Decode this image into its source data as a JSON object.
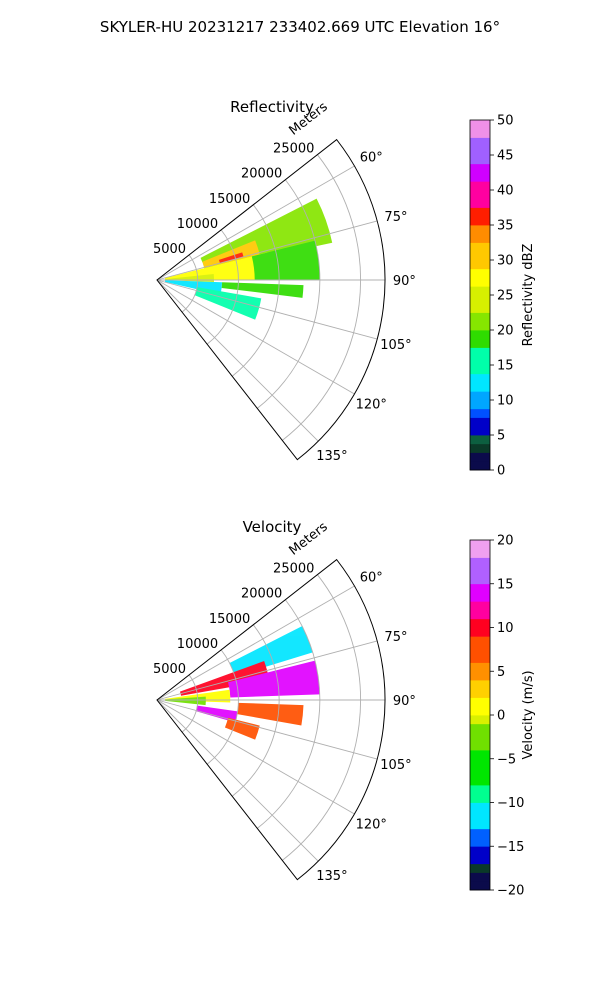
{
  "figure": {
    "suptitle": "SKYLER-HU  20231217  233402.669 UTC Elevation 16°"
  },
  "chart_data": [
    {
      "type": "heatmap",
      "projection": "polar-sector",
      "title": "Reflectivity",
      "radial_axis_label": "Meters",
      "radial_ticks": [
        5000,
        10000,
        15000,
        20000,
        25000
      ],
      "radial_tick_labels": [
        "5000",
        "10000",
        "15000",
        "20000",
        "25000"
      ],
      "r_max": 28000,
      "azimuth_range_deg": [
        52,
        142
      ],
      "angular_ticks_deg": [
        60,
        75,
        90,
        105,
        120,
        135
      ],
      "angular_tick_labels": [
        "60°",
        "75°",
        "90°",
        "105°",
        "120°",
        "135°"
      ],
      "grid": true,
      "colorbar": {
        "label": "Reflectivity dBZ",
        "range": [
          0,
          50
        ],
        "ticks": [
          0,
          5,
          10,
          15,
          20,
          25,
          30,
          35,
          40,
          45,
          50
        ],
        "tick_labels": [
          "0",
          "5",
          "10",
          "15",
          "20",
          "25",
          "30",
          "35",
          "40",
          "45",
          "50"
        ]
      },
      "echo_regions": [
        {
          "az": [
            63,
            78
          ],
          "r": [
            6000,
            22000
          ],
          "value": 22
        },
        {
          "az": [
            68,
            76
          ],
          "r": [
            6000,
            13000
          ],
          "value": 30
        },
        {
          "az": [
            72,
            75
          ],
          "r": [
            8000,
            11000
          ],
          "value": 36
        },
        {
          "az": [
            76,
            90
          ],
          "r": [
            1000,
            14000
          ],
          "value": 26
        },
        {
          "az": [
            76,
            90
          ],
          "r": [
            12000,
            20000
          ],
          "value": 17
        },
        {
          "az": [
            84,
            92
          ],
          "r": [
            1000,
            7000
          ],
          "value": 24
        },
        {
          "az": [
            92,
            103
          ],
          "r": [
            1000,
            8000
          ],
          "value": 12
        },
        {
          "az": [
            92,
            97
          ],
          "r": [
            8000,
            18000
          ],
          "value": 17
        },
        {
          "az": [
            100,
            112
          ],
          "r": [
            5000,
            13000
          ],
          "value": 14
        }
      ]
    },
    {
      "type": "heatmap",
      "projection": "polar-sector",
      "title": "Velocity",
      "radial_axis_label": "Meters",
      "radial_ticks": [
        5000,
        10000,
        15000,
        20000,
        25000
      ],
      "radial_tick_labels": [
        "5000",
        "10000",
        "15000",
        "20000",
        "25000"
      ],
      "r_max": 28000,
      "azimuth_range_deg": [
        52,
        142
      ],
      "angular_ticks_deg": [
        60,
        75,
        90,
        105,
        120,
        135
      ],
      "angular_tick_labels": [
        "60°",
        "75°",
        "90°",
        "105°",
        "120°",
        "135°"
      ],
      "grid": true,
      "colorbar": {
        "label": "Velocity (m/s)",
        "range": [
          -20,
          20
        ],
        "ticks": [
          -20,
          -15,
          -10,
          -5,
          0,
          5,
          10,
          15,
          20
        ],
        "tick_labels": [
          "−20",
          "−15",
          "−10",
          "−5",
          "0",
          "5",
          "10",
          "15",
          "20"
        ]
      },
      "echo_regions": [
        {
          "az": [
            63,
            73
          ],
          "r": [
            10000,
            20000
          ],
          "value": -11
        },
        {
          "az": [
            70,
            80
          ],
          "r": [
            3000,
            14000
          ],
          "value": 10
        },
        {
          "az": [
            76,
            88
          ],
          "r": [
            9000,
            20000
          ],
          "value": 15
        },
        {
          "az": [
            82,
            92
          ],
          "r": [
            1000,
            9000
          ],
          "value": 1
        },
        {
          "az": [
            86,
            96
          ],
          "r": [
            1000,
            6000
          ],
          "value": -3
        },
        {
          "az": [
            92,
            100
          ],
          "r": [
            10000,
            18000
          ],
          "value": 6
        },
        {
          "az": [
            98,
            106
          ],
          "r": [
            5000,
            10000
          ],
          "value": 15
        },
        {
          "az": [
            104,
            112
          ],
          "r": [
            9000,
            13000
          ],
          "value": 7
        }
      ]
    }
  ]
}
